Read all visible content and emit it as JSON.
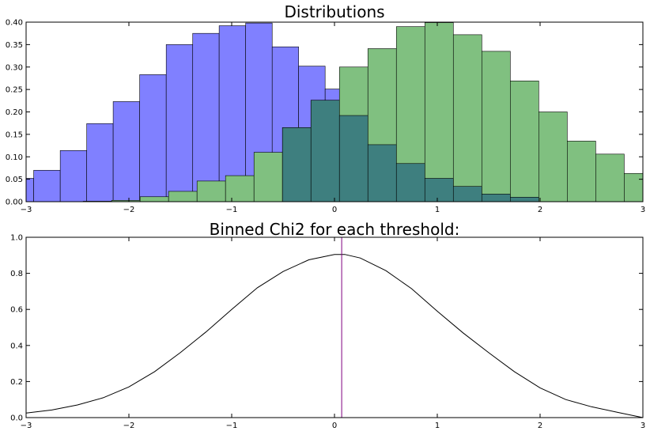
{
  "chart_data": [
    {
      "type": "bar",
      "title": "Distributions",
      "xlabel": "",
      "ylabel": "",
      "xlim": [
        -3,
        3
      ],
      "ylim": [
        0,
        0.4
      ],
      "grid": false,
      "x_ticks": [
        "−3",
        "−2",
        "−1",
        "0",
        "1",
        "2",
        "3"
      ],
      "x_tick_values": [
        -3,
        -2,
        -1,
        0,
        1,
        2,
        3
      ],
      "y_ticks": [
        "0.00",
        "0.05",
        "0.10",
        "0.15",
        "0.20",
        "0.25",
        "0.30",
        "0.35",
        "0.40"
      ],
      "y_tick_values": [
        0,
        0.05,
        0.1,
        0.15,
        0.2,
        0.25,
        0.3,
        0.35,
        0.4
      ],
      "series": [
        {
          "color": "#8080ff",
          "overlap_color": "#3e7f7f",
          "bin_edges": [
            -3.0,
            -2.926,
            -2.668,
            -2.41,
            -2.153,
            -1.895,
            -1.637,
            -1.379,
            -1.122,
            -0.864,
            -0.606,
            -0.349,
            -0.091,
            0.167
          ],
          "values": [
            0.052,
            0.07,
            0.114,
            0.174,
            0.223,
            0.283,
            0.35,
            0.375,
            0.392,
            0.398,
            0.345,
            0.302,
            0.251
          ]
        },
        {
          "color": "#80c080",
          "overlap_color": "#3e7f7f",
          "bin_edges": [
            -2.445,
            -2.168,
            -1.891,
            -1.614,
            -1.337,
            -1.06,
            -0.783,
            -0.506,
            -0.229,
            0.048,
            0.325,
            0.602,
            0.879,
            1.156,
            1.433,
            1.71,
            1.987,
            2.264,
            2.541,
            2.818,
            3.0
          ],
          "values": [
            0.001,
            0.003,
            0.011,
            0.023,
            0.046,
            0.058,
            0.11,
            0.165,
            0.226,
            0.3,
            0.341,
            0.39,
            0.399,
            0.372,
            0.335,
            0.269,
            0.2,
            0.135,
            0.106,
            0.063
          ]
        }
      ],
      "overlap_bars": {
        "bin_edges": [
          -0.506,
          -0.229,
          0.048,
          0.325,
          0.602,
          0.879,
          1.156,
          1.433,
          1.71,
          1.987
        ],
        "values": [
          0.165,
          0.226,
          0.192,
          0.127,
          0.085,
          0.052,
          0.034,
          0.017,
          0.01
        ]
      }
    },
    {
      "type": "line",
      "title": "Binned Chi2 for each threshold:",
      "xlabel": "",
      "ylabel": "",
      "xlim": [
        -3,
        3
      ],
      "ylim": [
        0,
        1.0
      ],
      "grid": false,
      "x_ticks": [
        "−3",
        "−2",
        "−1",
        "0",
        "1",
        "2",
        "3"
      ],
      "x_tick_values": [
        -3,
        -2,
        -1,
        0,
        1,
        2,
        3
      ],
      "y_ticks": [
        "0.0",
        "0.2",
        "0.4",
        "0.6",
        "0.8",
        "1.0"
      ],
      "y_tick_values": [
        0,
        0.2,
        0.4,
        0.6,
        0.8,
        1.0
      ],
      "line_color": "#000000",
      "threshold_color": "#800080",
      "threshold_x": 0.07,
      "x": [
        -3.0,
        -2.75,
        -2.5,
        -2.25,
        -2.0,
        -1.75,
        -1.5,
        -1.25,
        -1.0,
        -0.75,
        -0.5,
        -0.25,
        0.0,
        0.1,
        0.25,
        0.5,
        0.75,
        1.0,
        1.25,
        1.5,
        1.75,
        2.0,
        2.25,
        2.5,
        2.75,
        3.0
      ],
      "y": [
        0.025,
        0.042,
        0.07,
        0.11,
        0.17,
        0.255,
        0.36,
        0.475,
        0.6,
        0.72,
        0.81,
        0.875,
        0.905,
        0.905,
        0.885,
        0.815,
        0.715,
        0.59,
        0.47,
        0.36,
        0.255,
        0.165,
        0.1,
        0.06,
        0.03,
        0.0
      ]
    }
  ]
}
